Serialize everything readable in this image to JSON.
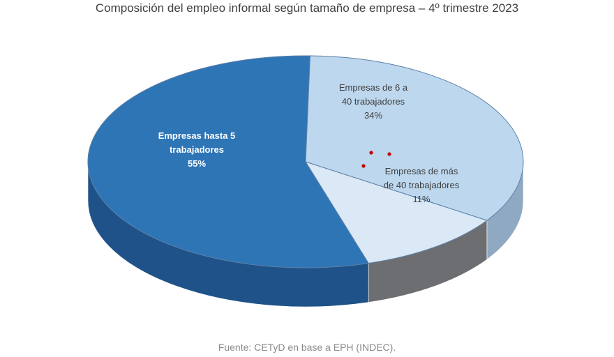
{
  "chart_data": {
    "type": "pie",
    "title": "Composición del empleo informal según tamaño de empresa – 4º trimestre 2023",
    "source": "Fuente: CETyD en base a EPH (INDEC).",
    "slices": [
      {
        "label_lines": [
          "Empresas hasta 5",
          "trabajadores"
        ],
        "value": 55,
        "value_label": "55%",
        "color": "#2e75b6",
        "label_color": "#ffffff",
        "label_bold": true
      },
      {
        "label_lines": [
          "Empresas de 6 a",
          "40 trabajadores"
        ],
        "value": 34,
        "value_label": "34%",
        "color": "#bdd7ee",
        "label_color": "#404040",
        "label_bold": false
      },
      {
        "label_lines": [
          "Empresas de más",
          "de 40 trabajadores"
        ],
        "value": 11,
        "value_label": "11%",
        "color": "#dbe8f5",
        "label_color": "#404040",
        "label_bold": false
      }
    ],
    "side_colors": [
      "#1f5288",
      "#8fa9c2",
      "#6d6e71"
    ],
    "legend": "none",
    "three_d": true
  }
}
